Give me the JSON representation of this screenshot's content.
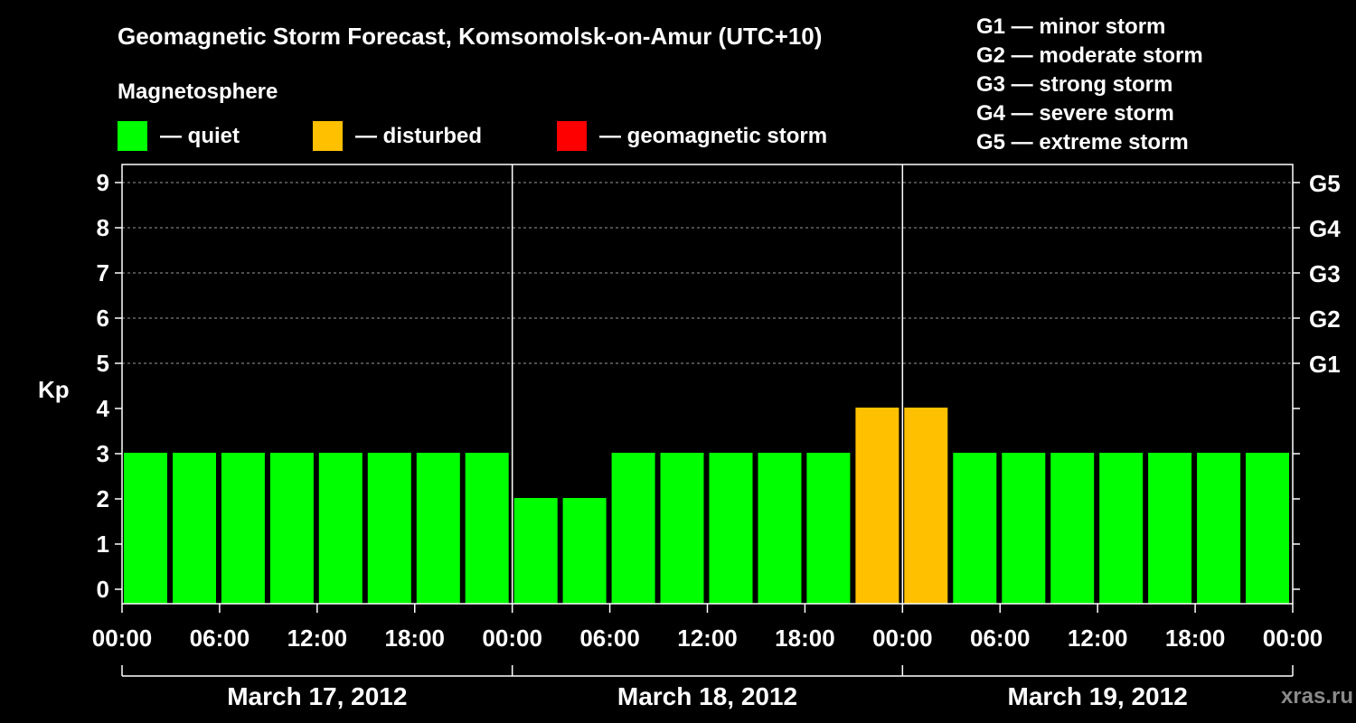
{
  "chart_data": {
    "type": "bar",
    "title": "Geomagnetic Storm Forecast, Komsomolsk-on-Amur (UTC+10)",
    "ylabel": "Kp",
    "ylim": [
      0,
      9
    ],
    "yticks": [
      "0",
      "1",
      "2",
      "3",
      "4",
      "5",
      "6",
      "7",
      "8",
      "9"
    ],
    "storm_scale": [
      {
        "kp": 5,
        "label": "G1"
      },
      {
        "kp": 6,
        "label": "G2"
      },
      {
        "kp": 7,
        "label": "G3"
      },
      {
        "kp": 8,
        "label": "G4"
      },
      {
        "kp": 9,
        "label": "G5"
      }
    ],
    "xticks": [
      "00:00",
      "06:00",
      "12:00",
      "18:00",
      "00:00",
      "06:00",
      "12:00",
      "18:00",
      "00:00",
      "06:00",
      "12:00",
      "18:00",
      "00:00"
    ],
    "days": [
      "March 17, 2012",
      "March 18, 2012",
      "March 19, 2012"
    ],
    "interval_hours": 3,
    "values": [
      3,
      3,
      3,
      3,
      3,
      3,
      3,
      3,
      2,
      2,
      3,
      3,
      3,
      3,
      3,
      4,
      4,
      3,
      3,
      3,
      3,
      3,
      3,
      3
    ],
    "grid": true
  },
  "legend": {
    "heading": "Magnetosphere",
    "items": [
      {
        "label": "— quiet",
        "color": "#00ff00"
      },
      {
        "label": "— disturbed",
        "color": "#ffc000"
      },
      {
        "label": "— geomagnetic storm",
        "color": "#ff0000"
      }
    ]
  },
  "scale_legend": [
    "G1 — minor storm",
    "G2 — moderate storm",
    "G3 — strong storm",
    "G4 — severe storm",
    "G5 — extreme storm"
  ],
  "watermark": "xras.ru",
  "colors": {
    "quiet": "#00ff00",
    "disturbed": "#ffc000",
    "storm": "#ff0000"
  }
}
